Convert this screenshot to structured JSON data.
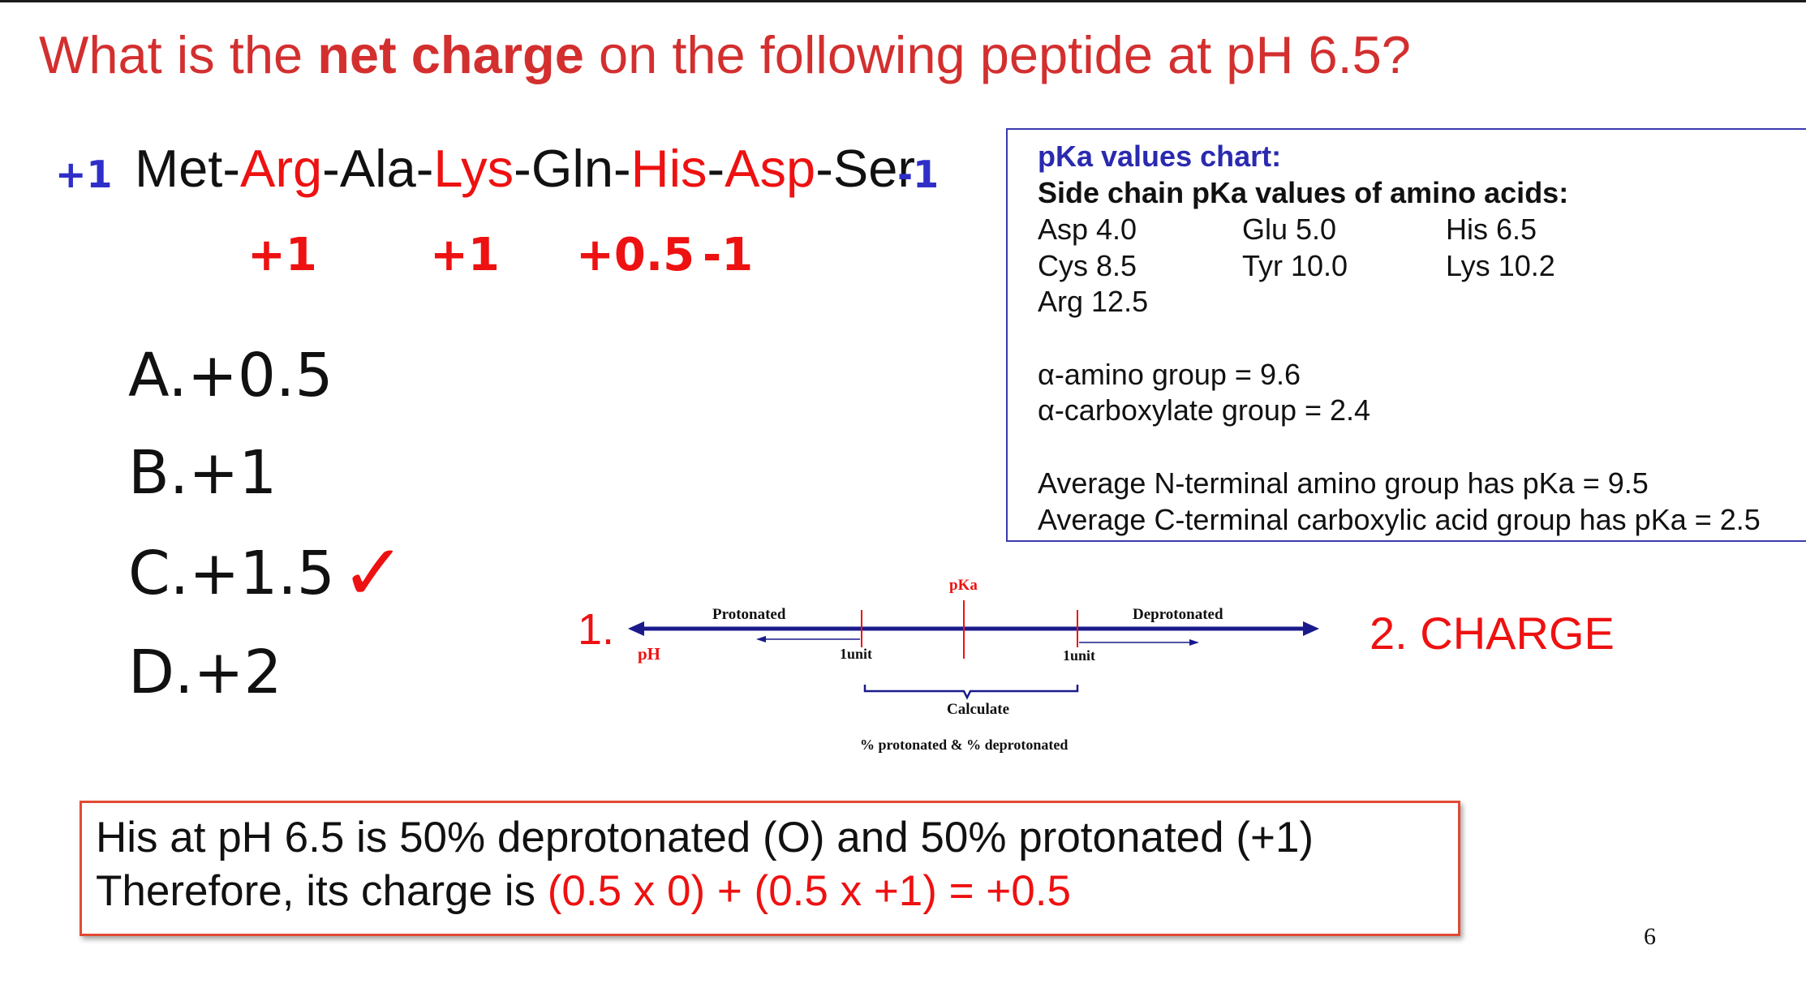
{
  "title": {
    "pre": "What is the ",
    "bold": "net charge",
    "post": " on the following peptide at pH 6.5?"
  },
  "peptide": {
    "n_term_charge": "+1",
    "c_term_charge": "-1",
    "residues": [
      {
        "name": "Met",
        "charged": false
      },
      {
        "name": "-",
        "charged": false
      },
      {
        "name": "Arg",
        "charged": true
      },
      {
        "name": "-Ala-",
        "charged": false
      },
      {
        "name": "Lys",
        "charged": true
      },
      {
        "name": "-Gln-",
        "charged": false
      },
      {
        "name": "His",
        "charged": true
      },
      {
        "name": "-",
        "charged": false
      },
      {
        "name": "Asp",
        "charged": true
      },
      {
        "name": "-Ser",
        "charged": false
      }
    ],
    "side_chain_charges": [
      "+1",
      "+1",
      "+0.5",
      "-1"
    ]
  },
  "options": [
    {
      "letter": "A.",
      "value": "+0.5"
    },
    {
      "letter": "B.",
      "value": "+1"
    },
    {
      "letter": "C.",
      "value": "+1.5"
    },
    {
      "letter": "D.",
      "value": "+2"
    }
  ],
  "correct_mark": "✓",
  "pka_chart": {
    "heading1": "pKa values chart:",
    "heading2": "Side chain pKa values of amino acids:",
    "row1": [
      "Asp 4.0",
      "Glu 5.0",
      "His 6.5"
    ],
    "row2": [
      "Cys 8.5",
      "Tyr 10.0",
      "Lys 10.2"
    ],
    "row3": [
      "Arg 12.5"
    ],
    "alpha_amino": "α-amino group = 9.6",
    "alpha_carboxylate": "α-carboxylate group = 2.4",
    "avg_n": "Average N-terminal amino group has pKa = 9.5",
    "avg_c": "Average C-terminal carboxylic acid group has pKa = 2.5"
  },
  "diagram": {
    "step1": "1.",
    "step2": "2. CHARGE",
    "pka": "pKa",
    "protonated": "Protonated",
    "deprotonated": "Deprotonated",
    "ph": "pH",
    "unit_left": "1unit",
    "unit_right": "1unit",
    "calculate": "Calculate",
    "percent": "% protonated & % deprotonated"
  },
  "answer": {
    "line1": "His at pH 6.5 is 50% deprotonated (O) and 50% protonated (+1)",
    "line2_pre": "Therefore, its charge is ",
    "line2_red": "(0.5 x 0) + (0.5 x +1) = +0.5"
  },
  "page_number": "6",
  "colors": {
    "red": "#e11111",
    "blue": "#2f2fc8",
    "navy": "#1a1a8c",
    "box_border": "#3b3bb0",
    "answer_border": "#e24a33"
  }
}
